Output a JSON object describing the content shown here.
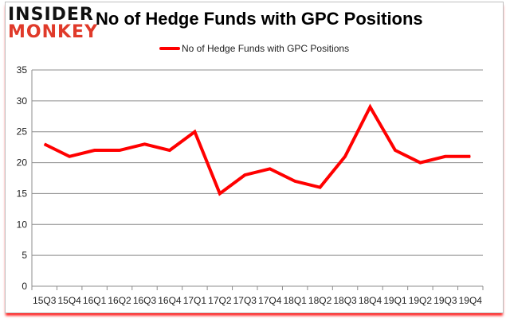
{
  "logo": {
    "line1": "INSIDER",
    "line2": "MONKEY"
  },
  "chart_data": {
    "type": "line",
    "title": "No of Hedge Funds with GPC Positions",
    "xlabel": "",
    "ylabel": "",
    "categories": [
      "15Q3",
      "15Q4",
      "16Q1",
      "16Q2",
      "16Q3",
      "16Q4",
      "17Q1",
      "17Q2",
      "17Q3",
      "17Q4",
      "18Q1",
      "18Q2",
      "18Q3",
      "18Q4",
      "19Q1",
      "19Q2",
      "19Q3",
      "19Q4"
    ],
    "series": [
      {
        "name": "No of Hedge Funds with GPC Positions",
        "color": "#ff0000",
        "values": [
          23,
          21,
          22,
          22,
          23,
          22,
          25,
          15,
          18,
          19,
          17,
          16,
          21,
          29,
          22,
          20,
          21,
          21
        ]
      }
    ],
    "ylim": [
      0,
      35
    ],
    "yticks": [
      0,
      5,
      10,
      15,
      20,
      25,
      30,
      35
    ],
    "grid": true,
    "legend_position": "top"
  }
}
